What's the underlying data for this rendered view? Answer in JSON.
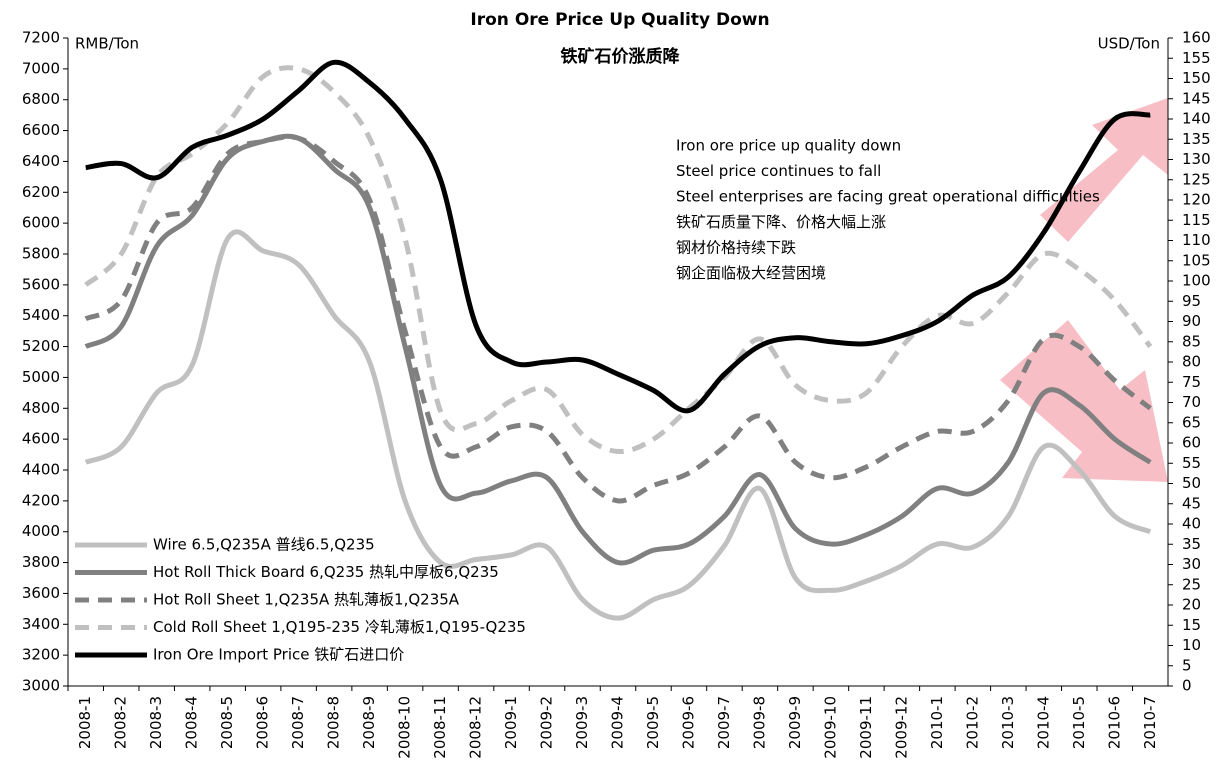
{
  "chart_data": {
    "type": "line",
    "title": "Iron Ore Price Up Quality Down",
    "subtitle": "铁矿石价涨质降",
    "y_label": "RMB/Ton",
    "y2_label": "USD/Ton",
    "annotations": [
      "Iron ore price up quality down",
      "Steel price continues to fall",
      "Steel enterprises are facing great operational difficulties",
      "铁矿石质量下降、价格大幅上涨",
      "钢材价格持续下跌",
      "钢企面临极大经营困境"
    ],
    "categories": [
      "2008-1",
      "2008-2",
      "2008-3",
      "2008-4",
      "2008-5",
      "2008-6",
      "2008-7",
      "2008-8",
      "2008-9",
      "2008-10",
      "2008-11",
      "2008-12",
      "2009-1",
      "2009-2",
      "2009-3",
      "2009-4",
      "2009-5",
      "2009-6",
      "2009-7",
      "2009-8",
      "2009-9",
      "2009-10",
      "2009-11",
      "2009-12",
      "2010-1",
      "2010-2",
      "2010-3",
      "2010-4",
      "2010-5",
      "2010-6",
      "2010-7"
    ],
    "series": [
      {
        "name": "Wire 6.5,Q235A  普线6.5,Q235",
        "color": "#c0c0c0",
        "dash": false,
        "values": [
          4450,
          4550,
          4900,
          5080,
          5900,
          5820,
          5730,
          5400,
          5100,
          4200,
          3800,
          3820,
          3850,
          3900,
          3560,
          3440,
          3560,
          3650,
          3910,
          4280,
          3700,
          3620,
          3680,
          3780,
          3920,
          3900,
          4100,
          4550,
          4400,
          4100,
          4000
        ]
      },
      {
        "name": "Hot Roll Thick Board 6,Q235  热轧中厚板6,Q235",
        "color": "#808080",
        "dash": false,
        "values": [
          5200,
          5330,
          5850,
          6050,
          6420,
          6530,
          6550,
          6350,
          6100,
          5200,
          4300,
          4250,
          4330,
          4350,
          4000,
          3800,
          3880,
          3920,
          4100,
          4370,
          4020,
          3920,
          3980,
          4100,
          4280,
          4250,
          4450,
          4900,
          4820,
          4600,
          4450
        ]
      },
      {
        "name": "Hot Roll Sheet 1,Q235A  热轧薄板1,Q235A",
        "color": "#808080",
        "dash": true,
        "values": [
          5380,
          5500,
          6000,
          6100,
          6450,
          6530,
          6550,
          6400,
          6150,
          5300,
          4550,
          4550,
          4680,
          4650,
          4350,
          4200,
          4300,
          4380,
          4550,
          4750,
          4450,
          4350,
          4420,
          4550,
          4650,
          4650,
          4850,
          5250,
          5200,
          4980,
          4800
        ]
      },
      {
        "name": "Cold Roll Sheet 1,Q195-235  冷轧薄板1,Q195-Q235",
        "color": "#c0c0c0",
        "dash": true,
        "values": [
          5600,
          5800,
          6300,
          6450,
          6650,
          6950,
          7000,
          6850,
          6550,
          5900,
          4780,
          4700,
          4850,
          4920,
          4630,
          4520,
          4600,
          4800,
          5000,
          5250,
          4950,
          4850,
          4900,
          5200,
          5400,
          5350,
          5550,
          5800,
          5700,
          5500,
          5200
        ]
      },
      {
        "name": "Iron Ore Import Price 铁矿石进口价",
        "color": "#000000",
        "dash": false,
        "axis": "y2",
        "values": [
          128,
          129,
          125.5,
          133,
          136,
          140,
          147,
          154,
          149,
          140,
          125,
          89,
          80,
          80,
          80.5,
          77,
          73,
          68,
          77,
          84,
          86,
          85,
          84.5,
          86.5,
          90,
          96.5,
          101,
          112,
          127,
          140,
          141
        ]
      }
    ],
    "ylim": [
      3000,
      7200
    ],
    "yticks": [
      3000,
      3200,
      3400,
      3600,
      3800,
      4000,
      4200,
      4400,
      4600,
      4800,
      5000,
      5200,
      5400,
      5600,
      5800,
      6000,
      6200,
      6400,
      6600,
      6800,
      7000,
      7200
    ],
    "y2lim": [
      0,
      160
    ],
    "y2ticks": [
      0,
      5,
      10,
      15,
      20,
      25,
      30,
      35,
      40,
      45,
      50,
      55,
      60,
      65,
      70,
      75,
      80,
      85,
      90,
      95,
      100,
      105,
      110,
      115,
      120,
      125,
      130,
      135,
      140,
      145,
      150,
      155,
      160
    ],
    "legend": "lower left",
    "grid": false
  }
}
